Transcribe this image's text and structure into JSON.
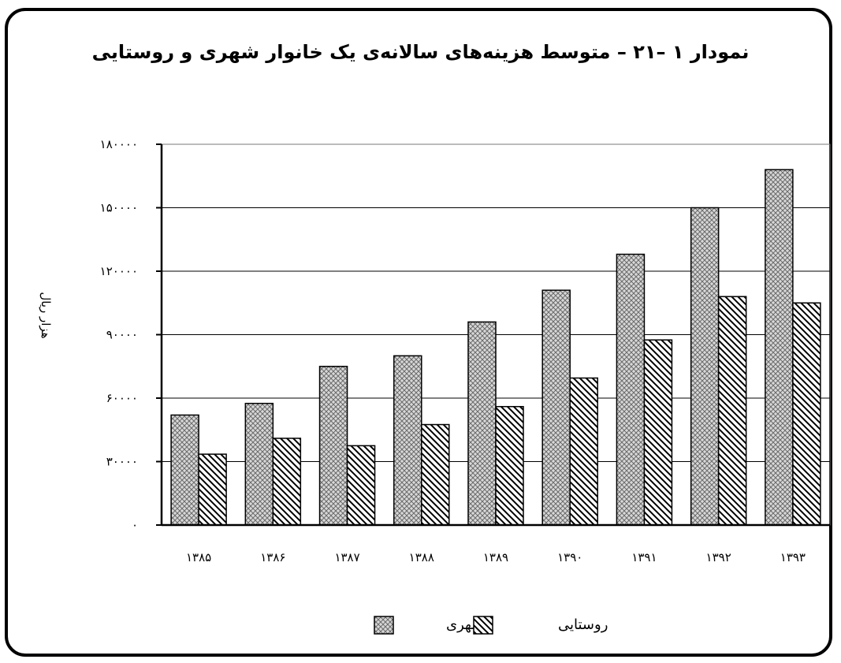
{
  "chart_data": {
    "type": "bar",
    "title": "نمودار ۱ –۲۱ – متوسط هزینه‌های سالانه‌ی یک خانوار شهری و روستایی",
    "ylabel": "هزار ریال",
    "xlabel": "",
    "categories": [
      "۱۳۸۵",
      "۱۳۸۶",
      "۱۳۸۷",
      "۱۳۸۸",
      "۱۳۸۹",
      "۱۳۹۰",
      "۱۳۹۱",
      "۱۳۹۲",
      "۱۳۹۳"
    ],
    "series": [
      {
        "name": "شهری",
        "values": [
          52000,
          57500,
          75000,
          80000,
          96000,
          111000,
          128000,
          150000,
          168000
        ],
        "pattern": "crosshatch"
      },
      {
        "name": "روستایی",
        "values": [
          33500,
          41000,
          37500,
          47500,
          56000,
          69500,
          87500,
          108000,
          105000
        ],
        "pattern": "diagonal"
      }
    ],
    "ylim": [
      0,
      180000
    ],
    "yticks": [
      0,
      30000,
      60000,
      90000,
      120000,
      150000,
      180000
    ],
    "ytick_labels": [
      "۰",
      "۳۰۰۰۰",
      "۶۰۰۰۰",
      "۹۰۰۰۰",
      "۱۲۰۰۰۰",
      "۱۵۰۰۰۰",
      "۱۸۰۰۰۰"
    ],
    "grid": true,
    "legend_position": "bottom"
  }
}
